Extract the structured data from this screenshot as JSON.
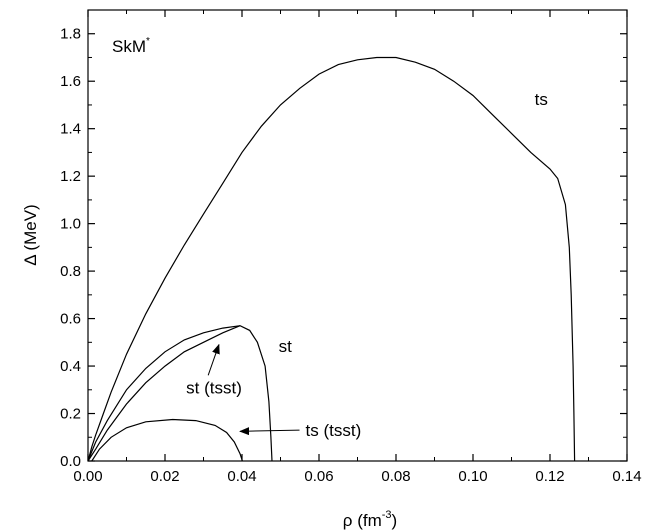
{
  "chart_data": {
    "type": "line",
    "title": "SkM*",
    "title_main": "SkM",
    "title_sup": "*",
    "xlabel_main": "ρ (fm",
    "xlabel_sup": "-3",
    "xlabel_end": ")",
    "ylabel": "Δ (MeV)",
    "xlim": [
      0.0,
      0.14
    ],
    "ylim": [
      0.0,
      1.9
    ],
    "x_ticks": [
      "0.00",
      "0.02",
      "0.04",
      "0.06",
      "0.08",
      "0.10",
      "0.12",
      "0.14"
    ],
    "y_ticks": [
      "0.0",
      "0.2",
      "0.4",
      "0.6",
      "0.8",
      "1.0",
      "1.2",
      "1.4",
      "1.6",
      "1.8"
    ],
    "grid": false,
    "series": [
      {
        "name": "ts",
        "points": [
          [
            0.0,
            0.0
          ],
          [
            0.001,
            0.06
          ],
          [
            0.002,
            0.11
          ],
          [
            0.004,
            0.2
          ],
          [
            0.006,
            0.29
          ],
          [
            0.008,
            0.37
          ],
          [
            0.01,
            0.45
          ],
          [
            0.015,
            0.62
          ],
          [
            0.02,
            0.77
          ],
          [
            0.025,
            0.91
          ],
          [
            0.03,
            1.04
          ],
          [
            0.035,
            1.17
          ],
          [
            0.04,
            1.3
          ],
          [
            0.045,
            1.41
          ],
          [
            0.05,
            1.5
          ],
          [
            0.055,
            1.57
          ],
          [
            0.06,
            1.63
          ],
          [
            0.065,
            1.67
          ],
          [
            0.07,
            1.69
          ],
          [
            0.075,
            1.7
          ],
          [
            0.08,
            1.7
          ],
          [
            0.085,
            1.68
          ],
          [
            0.09,
            1.65
          ],
          [
            0.095,
            1.6
          ],
          [
            0.1,
            1.54
          ],
          [
            0.105,
            1.46
          ],
          [
            0.11,
            1.38
          ],
          [
            0.115,
            1.3
          ],
          [
            0.12,
            1.23
          ],
          [
            0.122,
            1.19
          ],
          [
            0.124,
            1.08
          ],
          [
            0.125,
            0.9
          ],
          [
            0.1255,
            0.7
          ],
          [
            0.126,
            0.4
          ],
          [
            0.1262,
            0.2
          ],
          [
            0.1264,
            0.0
          ]
        ]
      },
      {
        "name": "st",
        "points": [
          [
            0.0,
            0.0
          ],
          [
            0.001,
            0.04
          ],
          [
            0.002,
            0.08
          ],
          [
            0.005,
            0.17
          ],
          [
            0.01,
            0.3
          ],
          [
            0.015,
            0.39
          ],
          [
            0.02,
            0.46
          ],
          [
            0.025,
            0.51
          ],
          [
            0.03,
            0.54
          ],
          [
            0.035,
            0.56
          ],
          [
            0.0395,
            0.57
          ],
          [
            0.042,
            0.55
          ],
          [
            0.044,
            0.5
          ],
          [
            0.046,
            0.4
          ],
          [
            0.047,
            0.25
          ],
          [
            0.0475,
            0.1
          ],
          [
            0.0478,
            0.0
          ]
        ]
      },
      {
        "name": "st (tsst)",
        "points": [
          [
            0.0,
            0.0
          ],
          [
            0.002,
            0.05
          ],
          [
            0.005,
            0.13
          ],
          [
            0.01,
            0.24
          ],
          [
            0.015,
            0.33
          ],
          [
            0.02,
            0.4
          ],
          [
            0.025,
            0.46
          ],
          [
            0.03,
            0.5
          ],
          [
            0.035,
            0.54
          ],
          [
            0.0395,
            0.57
          ]
        ]
      },
      {
        "name": "ts (tsst)",
        "points": [
          [
            0.001,
            0.0
          ],
          [
            0.003,
            0.05
          ],
          [
            0.006,
            0.1
          ],
          [
            0.01,
            0.14
          ],
          [
            0.015,
            0.165
          ],
          [
            0.022,
            0.175
          ],
          [
            0.028,
            0.17
          ],
          [
            0.033,
            0.15
          ],
          [
            0.036,
            0.12
          ],
          [
            0.038,
            0.08
          ],
          [
            0.0395,
            0.03
          ],
          [
            0.0401,
            0.0
          ]
        ]
      }
    ],
    "annotations": [
      {
        "text": "ts",
        "x": 0.116,
        "y": 1.5
      },
      {
        "text": "st",
        "x": 0.0495,
        "y": 0.46
      },
      {
        "text": "st (tsst)",
        "x": 0.0255,
        "y": 0.285,
        "arrow_to": [
          0.034,
          0.49
        ]
      },
      {
        "text": "ts (tsst)",
        "x": 0.0565,
        "y": 0.105,
        "arrow_to": [
          0.0395,
          0.125
        ]
      }
    ]
  }
}
